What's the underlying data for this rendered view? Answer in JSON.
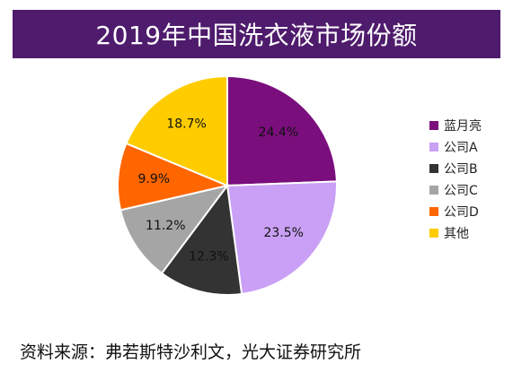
{
  "chart_data": {
    "type": "pie",
    "title": "2019年中国洗衣液市场份额",
    "categories": [
      "蓝月亮",
      "公司A",
      "公司B",
      "公司C",
      "公司D",
      "其他"
    ],
    "values": [
      24.4,
      23.5,
      12.3,
      11.2,
      9.9,
      18.7
    ],
    "value_labels": [
      "24.4%",
      "23.5%",
      "12.3%",
      "11.2%",
      "9.9%",
      "18.7%"
    ],
    "colors": [
      "#7a0e7d",
      "#c9a0f5",
      "#333333",
      "#a5a5a5",
      "#ff6600",
      "#ffcc00"
    ],
    "legend_position": "right"
  },
  "source": "资料来源：弗若斯特沙利文，光大证券研究所"
}
